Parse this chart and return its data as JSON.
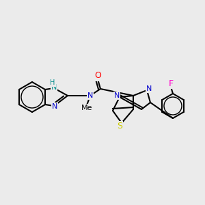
{
  "bg_color": "#ebebeb",
  "bond_color": "#000000",
  "bond_width": 1.5,
  "atom_colors": {
    "N": "#0000cc",
    "O": "#ff0000",
    "S": "#cccc00",
    "F": "#ff00cc",
    "NH": "#008b8b",
    "C": "#000000"
  },
  "font_size": 9,
  "font_size_small": 8
}
